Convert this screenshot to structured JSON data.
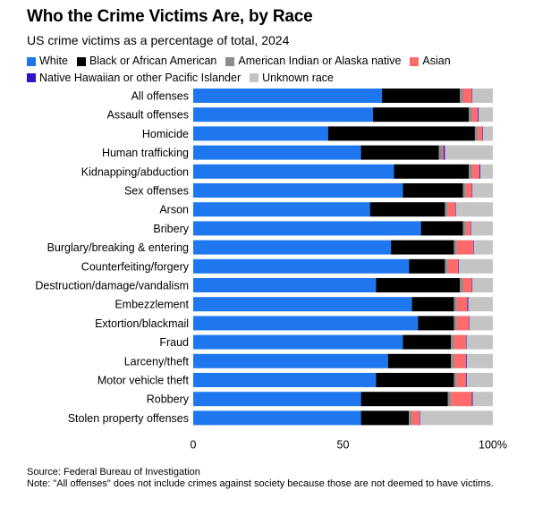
{
  "title": "Who the Crime Victims Are, by Race",
  "subtitle": "US crime victims as a percentage of total, 2024",
  "source": "Source: Federal Bureau of Investigation",
  "note": "Note: \"All offenses\" does not include crimes against society because those are not deemed to have victims.",
  "chart_data": {
    "type": "bar",
    "orientation": "horizontal",
    "stacked": true,
    "title": "Who the Crime Victims Are, by Race",
    "subtitle": "US crime victims as a percentage of total, 2024",
    "xlim": [
      0,
      100
    ],
    "x_ticks": [
      0,
      50,
      100
    ],
    "x_tick_labels": [
      "0",
      "50",
      "100%"
    ],
    "legend_position": "top",
    "categories": [
      "All offenses",
      "Assault offenses",
      "Homicide",
      "Human trafficking",
      "Kidnapping/abduction",
      "Sex offenses",
      "Arson",
      "Bribery",
      "Burglary/breaking & entering",
      "Counterfeiting/forgery",
      "Destruction/damage/vandalism",
      "Embezzlement",
      "Extortion/blackmail",
      "Fraud",
      "Larceny/theft",
      "Motor vehicle theft",
      "Robbery",
      "Stolen property offenses"
    ],
    "series": [
      {
        "name": "White",
        "color": "#1f77f0",
        "values": [
          63,
          60,
          45,
          56,
          67,
          70,
          59,
          76,
          66,
          72,
          61,
          73,
          75,
          70,
          65,
          61,
          56,
          56
        ]
      },
      {
        "name": "Black or African American",
        "color": "#000000",
        "values": [
          26,
          32,
          49,
          26,
          25,
          20,
          25,
          14,
          21,
          12,
          28,
          14,
          12,
          16,
          21,
          26,
          29,
          16
        ]
      },
      {
        "name": "American Indian or Alaska native",
        "color": "#8c8c8c",
        "values": [
          1,
          1,
          1,
          1,
          1,
          1,
          1,
          1,
          1,
          1,
          1,
          1,
          1,
          1,
          1,
          1,
          1,
          1
        ]
      },
      {
        "name": "Asian",
        "color": "#ff6b6b",
        "values": [
          3,
          2,
          1.5,
          0.5,
          2.5,
          2,
          2.5,
          1.5,
          5.5,
          3.5,
          3,
          3.5,
          4,
          4,
          4,
          3,
          7,
          2.5
        ]
      },
      {
        "name": "Native Hawaiian or other Pacific Islander",
        "color": "#2b16c9",
        "values": [
          0.2,
          0.3,
          0.2,
          0.5,
          0.3,
          0.2,
          0.2,
          0.2,
          0.2,
          0.2,
          0.2,
          0.3,
          0.2,
          0.2,
          0.3,
          0.3,
          0.3,
          0.2
        ]
      },
      {
        "name": "Unknown race",
        "color": "#c4c4c4",
        "values": [
          6.8,
          4.7,
          3.3,
          16,
          4.2,
          6.8,
          12.3,
          7.3,
          6.3,
          11.3,
          6.8,
          8.2,
          7.8,
          8.8,
          8.7,
          8.7,
          6.7,
          24.3
        ]
      }
    ]
  }
}
